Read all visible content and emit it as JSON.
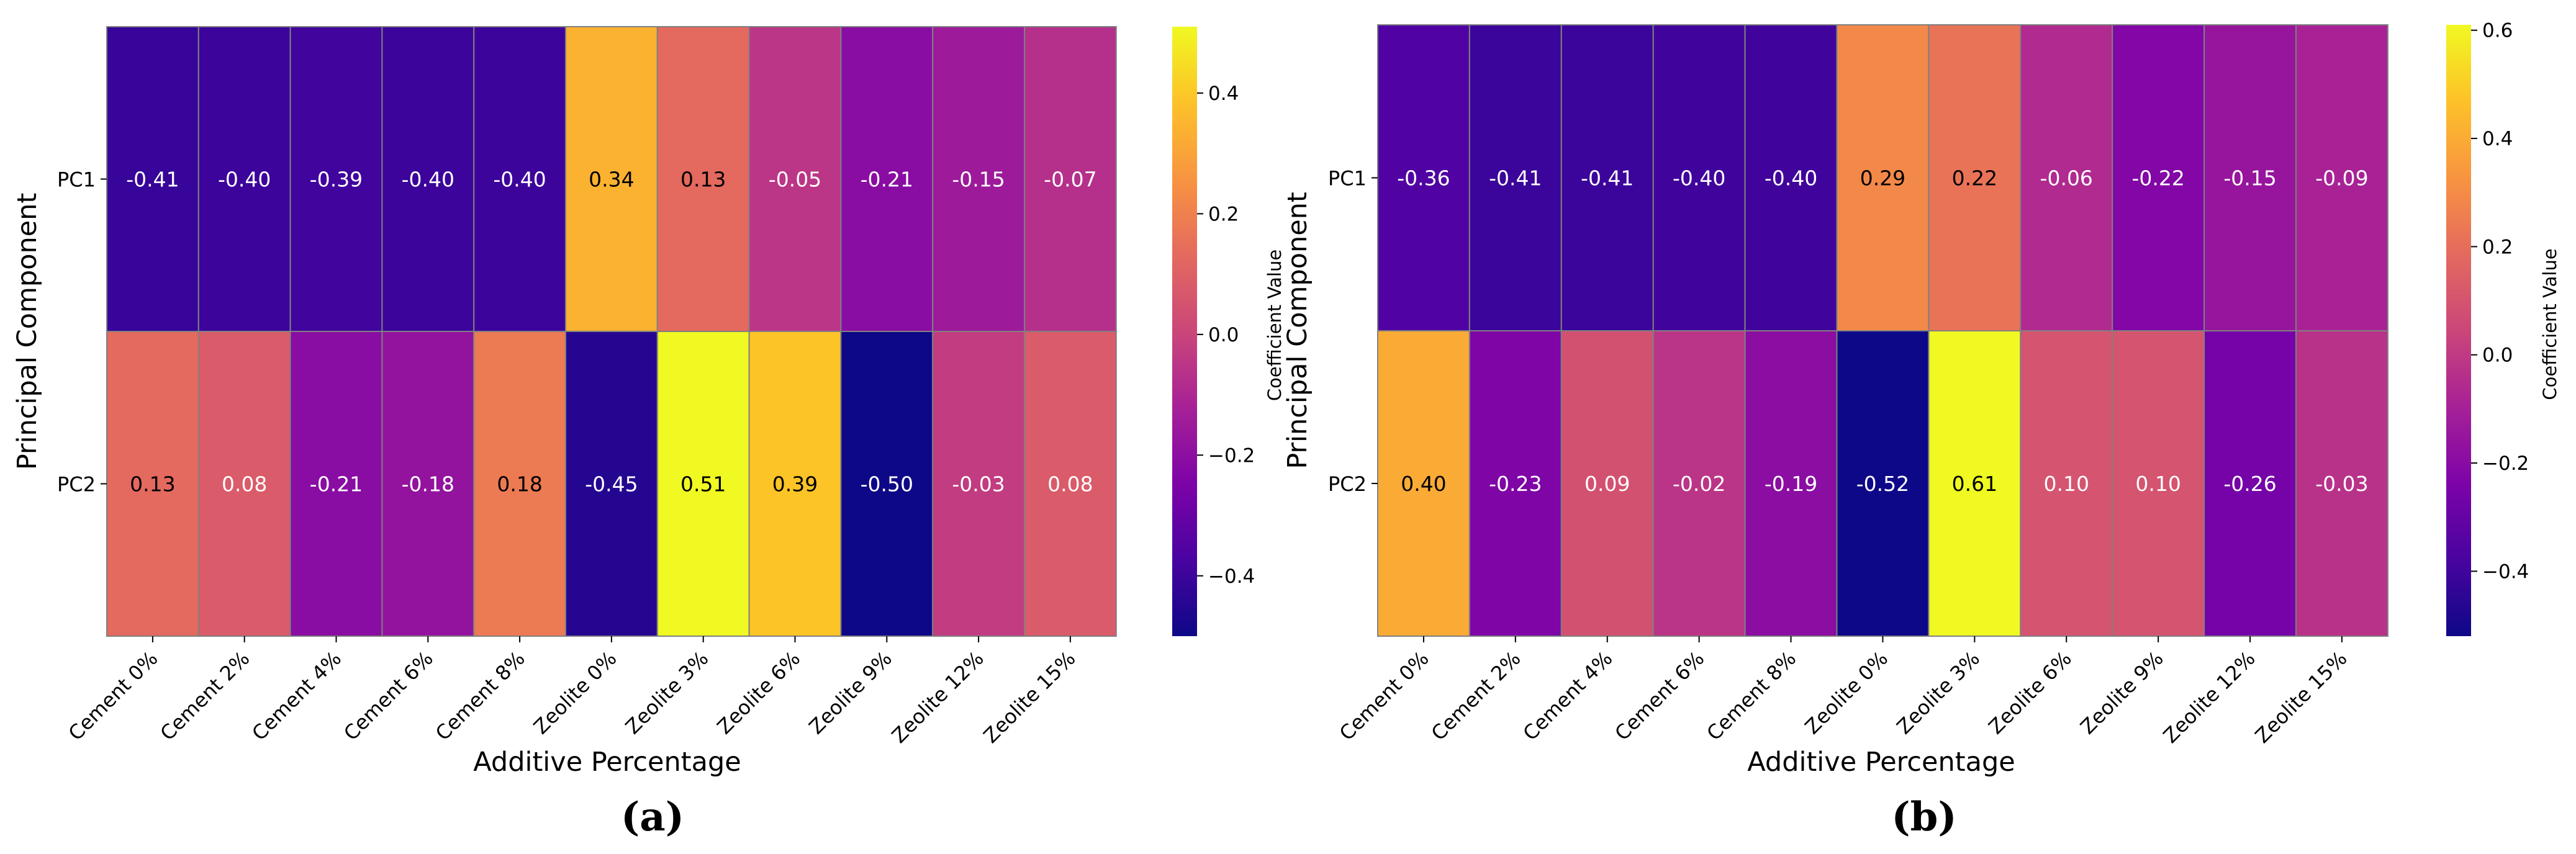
{
  "chart_data": [
    {
      "type": "heatmap",
      "panel_label": "(a)",
      "xlabel": "Additive Percentage",
      "ylabel": "Principal Component",
      "colorbar_label": "Coefficient Value",
      "colormap": "plasma",
      "vmin": -0.5,
      "vmax": 0.51,
      "colorbar_ticks": [
        -0.4,
        -0.2,
        0.0,
        0.2,
        0.4
      ],
      "colorbar_tick_labels": [
        "−0.4",
        "−0.2",
        "0.0",
        "0.2",
        "0.4"
      ],
      "columns": [
        "Cement 0%",
        "Cement 2%",
        "Cement 4%",
        "Cement 6%",
        "Cement 8%",
        "Zeolite 0%",
        "Zeolite 3%",
        "Zeolite 6%",
        "Zeolite 9%",
        "Zeolite 12%",
        "Zeolite 15%"
      ],
      "rows": [
        "PC1",
        "PC2"
      ],
      "values": [
        [
          -0.41,
          -0.4,
          -0.39,
          -0.4,
          -0.4,
          0.34,
          0.13,
          -0.05,
          -0.21,
          -0.15,
          -0.07
        ],
        [
          0.13,
          0.08,
          -0.21,
          -0.18,
          0.18,
          -0.45,
          0.51,
          0.39,
          -0.5,
          -0.03,
          0.08
        ]
      ],
      "labels": [
        [
          "-0.41",
          "-0.40",
          "-0.39",
          "-0.40",
          "-0.40",
          "0.34",
          "0.13",
          "-0.05",
          "-0.21",
          "-0.15",
          "-0.07"
        ],
        [
          "0.13",
          "0.08",
          "-0.21",
          "-0.18",
          "0.18",
          "-0.45",
          "0.51",
          "0.39",
          "-0.50",
          "-0.03",
          "0.08"
        ]
      ]
    },
    {
      "type": "heatmap",
      "panel_label": "(b)",
      "xlabel": "Additive Percentage",
      "ylabel": "Principal Component",
      "colorbar_label": "Coefficient Value",
      "colormap": "plasma",
      "vmin": -0.52,
      "vmax": 0.61,
      "colorbar_ticks": [
        -0.4,
        -0.2,
        0.0,
        0.2,
        0.4,
        0.6
      ],
      "colorbar_tick_labels": [
        "−0.4",
        "−0.2",
        "0.0",
        "0.2",
        "0.4",
        "0.6"
      ],
      "columns": [
        "Cement 0%",
        "Cement 2%",
        "Cement 4%",
        "Cement 6%",
        "Cement 8%",
        "Zeolite 0%",
        "Zeolite 3%",
        "Zeolite 6%",
        "Zeolite 9%",
        "Zeolite 12%",
        "Zeolite 15%"
      ],
      "rows": [
        "PC1",
        "PC2"
      ],
      "values": [
        [
          -0.36,
          -0.41,
          -0.41,
          -0.4,
          -0.4,
          0.29,
          0.22,
          -0.06,
          -0.22,
          -0.15,
          -0.09
        ],
        [
          0.4,
          -0.23,
          0.09,
          -0.02,
          -0.19,
          -0.52,
          0.61,
          0.1,
          0.1,
          -0.26,
          -0.03
        ]
      ],
      "labels": [
        [
          "-0.36",
          "-0.41",
          "-0.41",
          "-0.40",
          "-0.40",
          "0.29",
          "0.22",
          "-0.06",
          "-0.22",
          "-0.15",
          "-0.09"
        ],
        [
          "0.40",
          "-0.23",
          "0.09",
          "-0.02",
          "-0.19",
          "-0.52",
          "0.61",
          "0.10",
          "0.10",
          "-0.26",
          "-0.03"
        ]
      ]
    }
  ],
  "colors": {
    "cell_border": "#808080",
    "axis_text": "#000000",
    "background": "#ffffff"
  }
}
